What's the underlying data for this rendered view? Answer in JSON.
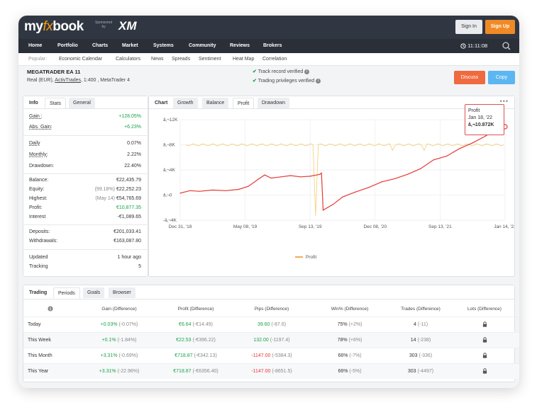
{
  "brand": {
    "logo_a": "my",
    "logo_fx": "fx",
    "logo_b": "book",
    "sponsored": "Sponsored",
    "by": "by",
    "sponsor": "XM"
  },
  "auth": {
    "signin": "Sign In",
    "signup": "Sign Up"
  },
  "nav": [
    "Home",
    "Portfolio",
    "Charts",
    "Market",
    "Systems",
    "Community",
    "Reviews",
    "Brokers"
  ],
  "clock": "11:11:08",
  "popular": {
    "label": "Popular:",
    "links": [
      "Economic Calendar",
      "Calculators",
      "News",
      "Spreads",
      "Sentiment",
      "Heat Map",
      "Correlation"
    ]
  },
  "account": {
    "name": "MEGATRADER EA 11",
    "meta_prefix": "Real (EUR),",
    "broker": "ActivTrades",
    "meta_suffix": ", 1:400 , MetaTrader 4",
    "verify_1": "Track record verified",
    "verify_2": "Trading privileges verified",
    "discuss": "Discuss",
    "copy": "Copy"
  },
  "info_tabs": [
    "Info",
    "Stats",
    "General"
  ],
  "stats": {
    "gain_k": "Gain :",
    "gain_v": "+128.05%",
    "abs_k": "Abs. Gain:",
    "abs_v": "+6.23%",
    "daily_k": "Daily",
    "daily_v": "0.07%",
    "monthly_k": "Monthly:",
    "monthly_v": "2.22%",
    "drawdown_k": "Drawdown:",
    "drawdown_v": "22.40%",
    "balance_k": "Balance:",
    "balance_v": "€22,435.79",
    "equity_k": "Equity:",
    "equity_pct": "(99.18%)",
    "equity_v": "€22,252.23",
    "highest_k": "Highest:",
    "highest_date": "(May 14)",
    "highest_v": "€54,765.69",
    "profit_k": "Profit:",
    "profit_v": "€10,877.35",
    "interest_k": "Interest",
    "interest_v": "-€1,089.65",
    "deposits_k": "Deposits:",
    "deposits_v": "€201,033.41",
    "withdrawals_k": "Withdrawals:",
    "withdrawals_v": "€163,087.80",
    "updated_k": "Updated",
    "updated_v": "1 hour ago",
    "tracking_k": "Tracking",
    "tracking_v": "5"
  },
  "chart_tabs": [
    "Chart",
    "Growth",
    "Balance",
    "Profit",
    "Drawdown"
  ],
  "chart_menu": "•••",
  "tooltip": {
    "title": "Profit",
    "date": "Jan 18, '22",
    "value": "â‚¬10.872K"
  },
  "chart_data": {
    "type": "line",
    "x_tick_labels": [
      "Dec 31, '18",
      "May 08, '19",
      "Sep 13, '19",
      "Dec 08, '20",
      "Sep 13, '21",
      "Jan 14, '22"
    ],
    "y_tick_labels": [
      "â‚¬12K",
      "â‚¬8K",
      "â‚¬4K",
      "â‚¬0",
      "-â‚¬4K"
    ],
    "ylim": [
      -4000,
      12000
    ],
    "legend": "Profit",
    "grid": true,
    "series": [
      {
        "name": "Profit",
        "color": "#e53935",
        "x_position": [
          0,
          0.03,
          0.06,
          0.1,
          0.14,
          0.18,
          0.21,
          0.24,
          0.26,
          0.28,
          0.31,
          0.34,
          0.37,
          0.4,
          0.43,
          0.435,
          0.44,
          0.47,
          0.5,
          0.54,
          0.58,
          0.62,
          0.66,
          0.7,
          0.74,
          0.78,
          0.82,
          0.86,
          0.9,
          0.94,
          0.97,
          1.0
        ],
        "values": [
          300,
          700,
          600,
          800,
          700,
          900,
          1400,
          2500,
          3200,
          2700,
          2900,
          3100,
          2900,
          3000,
          3300,
          3500,
          -2400,
          -1500,
          -300,
          500,
          1200,
          2100,
          2600,
          3300,
          4200,
          5600,
          6200,
          7400,
          8300,
          9400,
          10400,
          10872
        ]
      }
    ]
  },
  "bottom_tabs": [
    "Trading",
    "Periods",
    "Goals",
    "Browser"
  ],
  "table": {
    "headers": [
      "Gain (Difference)",
      "Profit (Difference)",
      "Pips (Difference)",
      "Win% (Difference)",
      "Trades (Difference)",
      "Lots (Difference)"
    ],
    "rows": [
      {
        "period": "Today",
        "gain": "+0.03%",
        "gain_d": "(-0.07%)",
        "profit": "€6.64",
        "profit_d": "(-€14.49)",
        "pips": "39.60",
        "pips_d": "(-87.6)",
        "win": "75%",
        "win_d": "(+2%)",
        "trades": "4",
        "trades_d": "(-11)"
      },
      {
        "period": "This Week",
        "gain": "+0.1%",
        "gain_d": "(-1.84%)",
        "profit": "€22.53",
        "profit_d": "(-€396.22)",
        "pips": "132.00",
        "pips_d": "(-1197.4)",
        "win": "78%",
        "win_d": "(+6%)",
        "trades": "14",
        "trades_d": "(-238)"
      },
      {
        "period": "This Month",
        "gain": "+3.31%",
        "gain_d": "(-0.69%)",
        "profit": "€718.87",
        "profit_d": "(-€342.13)",
        "pips": "-1147.00",
        "pips_d": "(-5384.3)",
        "win": "66%",
        "win_d": "(-7%)",
        "trades": "303",
        "trades_d": "(-336)"
      },
      {
        "period": "This Year",
        "gain": "+3.31%",
        "gain_d": "(-22.96%)",
        "profit": "€718.87",
        "profit_d": "(-€6356.40)",
        "pips": "-1147.00",
        "pips_d": "(-8651.5)",
        "win": "66%",
        "win_d": "(-5%)",
        "trades": "303",
        "trades_d": "(-4497)"
      }
    ]
  }
}
